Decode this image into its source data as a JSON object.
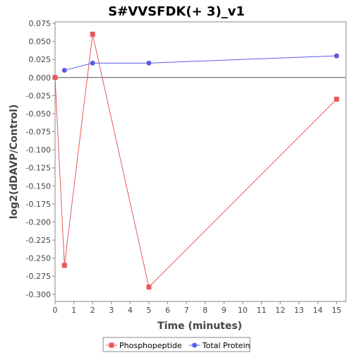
{
  "chart_data": {
    "type": "line",
    "title": "S#VVSFDK(+ 3)_v1",
    "xlabel": "Time (minutes)",
    "ylabel": "log2(dDAVP/Control)",
    "xlim": [
      0,
      15.5
    ],
    "ylim": [
      -0.31,
      0.077
    ],
    "x_ticks": [
      0,
      1,
      2,
      3,
      4,
      5,
      6,
      7,
      8,
      9,
      10,
      11,
      12,
      13,
      14,
      15
    ],
    "y_ticks": [
      0.075,
      0.05,
      0.025,
      0.0,
      -0.025,
      -0.05,
      -0.075,
      -0.1,
      -0.125,
      -0.15,
      -0.175,
      -0.2,
      -0.225,
      -0.25,
      -0.275,
      -0.3
    ],
    "y_tick_labels": [
      "0.075",
      "0.050",
      "0.025",
      "0.000",
      "-0.025",
      "-0.050",
      "-0.075",
      "-0.100",
      "-0.125",
      "-0.150",
      "-0.175",
      "-0.200",
      "-0.225",
      "-0.250",
      "-0.275",
      "-0.300"
    ],
    "zero_line": true,
    "grid": false,
    "legend_position": "bottom",
    "series": [
      {
        "name": "Phosphopeptide",
        "color": "#e8585a",
        "marker": "square",
        "x": [
          0,
          0.5,
          2,
          5,
          15
        ],
        "y": [
          0.0,
          -0.26,
          0.06,
          -0.29,
          -0.03
        ]
      },
      {
        "name": "Total Protein",
        "color": "#5a5ae8",
        "marker": "circle",
        "x": [
          0.5,
          2,
          5,
          15
        ],
        "y": [
          0.01,
          0.02,
          0.02,
          0.03
        ]
      }
    ]
  }
}
